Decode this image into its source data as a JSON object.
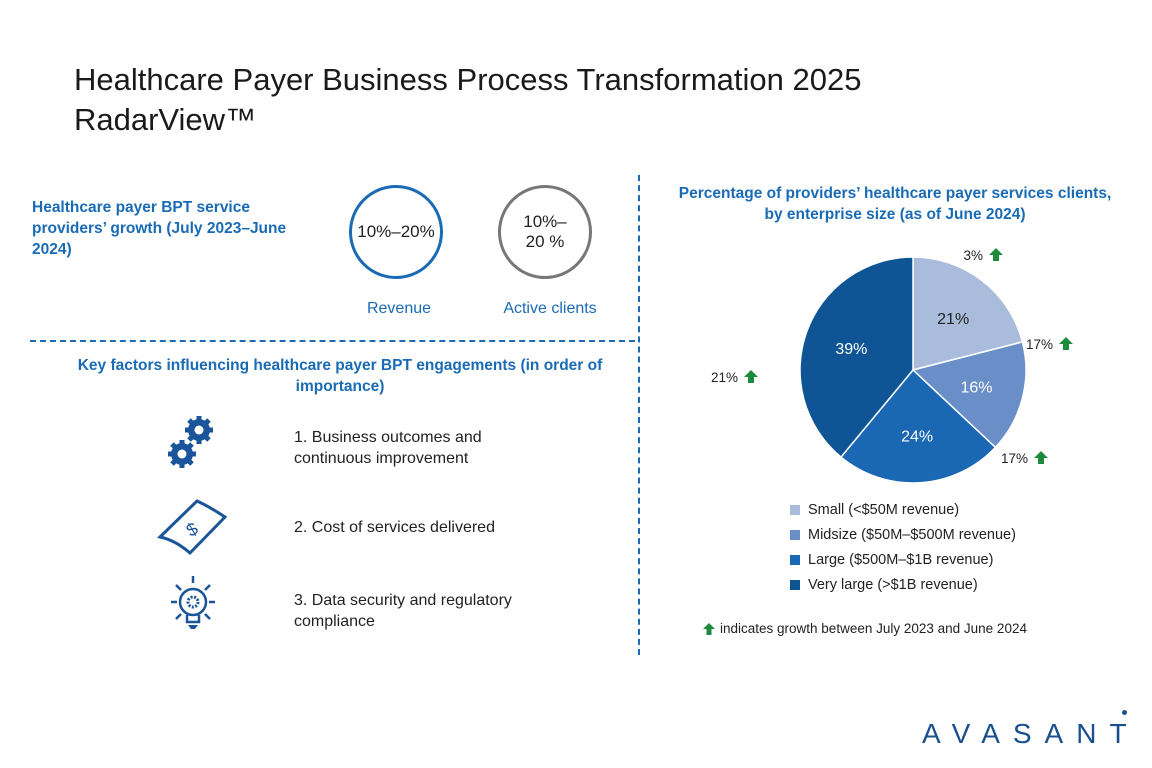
{
  "title_line1": "Healthcare Payer Business Process Transformation 2025",
  "title_line2": "RadarView™",
  "growth": {
    "heading": "Healthcare payer BPT service providers’ growth (July 2023–June 2024)",
    "revenue_value": "10%–20%",
    "revenue_label": "Revenue",
    "clients_value": "10%–20 %",
    "clients_label": "Active clients"
  },
  "factors": {
    "heading": "Key factors influencing healthcare payer BPT engagements (in order of importance)",
    "items": [
      {
        "text": "1. Business outcomes and continuous improvement",
        "icon": "gears-icon"
      },
      {
        "text": "2. Cost of services delivered",
        "icon": "money-bill-icon"
      },
      {
        "text": "3. Data security and regulatory compliance",
        "icon": "lightbulb-gear-icon"
      }
    ]
  },
  "chart_data": {
    "type": "pie",
    "title": "Percentage of providers’ healthcare payer services clients, by enterprise size (as of June 2024)",
    "categories": [
      "Small (<$50M revenue)",
      "Midsize ($50M–$500M revenue)",
      "Large ($500M–$1B revenue)",
      "Very large (>$1B revenue)"
    ],
    "values": [
      21,
      16,
      24,
      39
    ],
    "value_labels": [
      "21%",
      "16%",
      "24%",
      "39%"
    ],
    "growth_labels": [
      "3%",
      "17%",
      "17%",
      "21%"
    ],
    "colors": [
      "#a9bcdc",
      "#6a8fc8",
      "#1a67b3",
      "#0f5595"
    ],
    "label_colors": [
      "#222",
      "#fff",
      "#fff",
      "#fff"
    ],
    "legend_placement": "bottom",
    "note": "indicates growth between July 2023 and June 2024"
  },
  "colors": {
    "accent": "#1a6bb5",
    "growth_arrow": "#1e8a3c"
  },
  "logo": "AVASANT"
}
